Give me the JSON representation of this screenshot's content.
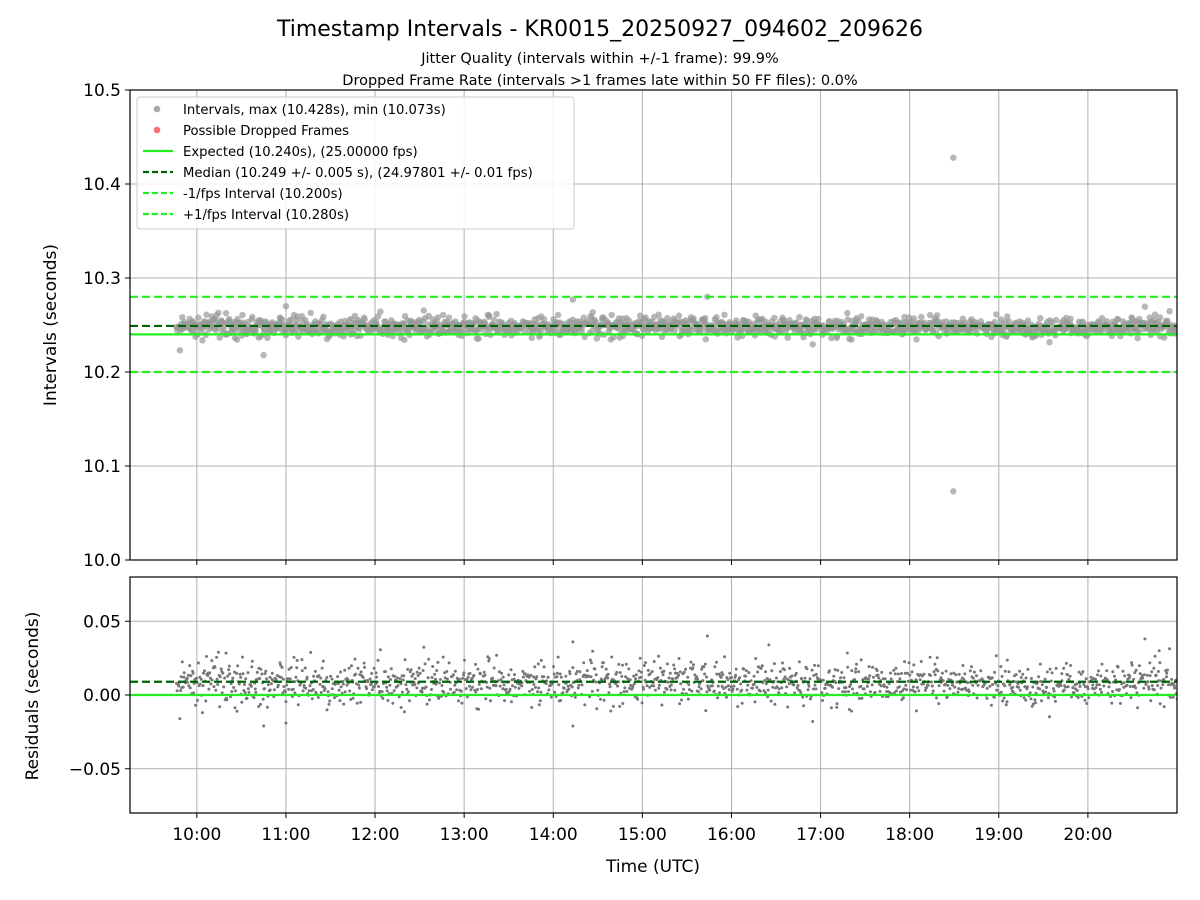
{
  "figure": {
    "title": "Timestamp Intervals - KR0015_20250927_094602_209626",
    "subtitle_line1": "Jitter Quality (intervals within +/-1 frame): 99.9%",
    "subtitle_line2": "Dropped Frame Rate (intervals >1 frames late within 50 FF files): 0.0%"
  },
  "colors": {
    "points": "#808080",
    "dropped": "#ff5555",
    "expected": "#22ee22",
    "median": "#006400",
    "bounds": "#22ee22",
    "grid": "#b0b0b0"
  },
  "chart_data": [
    {
      "type": "scatter",
      "ylabel": "Intervals (seconds)",
      "xlim": [
        9.25,
        21.0
      ],
      "ylim": [
        10.0,
        10.5
      ],
      "yticks": [
        10.0,
        10.1,
        10.2,
        10.3,
        10.4,
        10.5
      ],
      "ytick_labels": [
        "10.0",
        "10.1",
        "10.2",
        "10.3",
        "10.4",
        "10.5"
      ],
      "xticks": [
        10,
        11,
        12,
        13,
        14,
        15,
        16,
        17,
        18,
        19,
        20
      ],
      "grid": true,
      "legend_position": "top-left",
      "legend": [
        {
          "label": "Intervals, max (10.428s), min (10.073s)",
          "kind": "marker",
          "color": "#999999"
        },
        {
          "label": "Possible Dropped Frames",
          "kind": "marker",
          "color": "#ff5555"
        },
        {
          "label": "Expected (10.240s), (25.00000 fps)",
          "kind": "solid",
          "color": "#22ee22"
        },
        {
          "label": "Median (10.249 +/- 0.005 s), (24.97801 +/- 0.01 fps)",
          "kind": "dashed",
          "color": "#006400"
        },
        {
          "label": "-1/fps Interval (10.200s)",
          "kind": "dashed",
          "color": "#22ee22"
        },
        {
          "label": "+1/fps Interval (10.280s)",
          "kind": "dashed",
          "color": "#22ee22"
        }
      ],
      "series": {
        "time_range_hours": [
          9.77,
          21.0
        ],
        "typical_value": 10.248,
        "typical_spread": 0.005,
        "outliers": [
          {
            "x": 18.49,
            "y": 10.428
          },
          {
            "x": 18.49,
            "y": 10.073
          },
          {
            "x": 15.73,
            "y": 10.28
          },
          {
            "x": 14.22,
            "y": 10.277
          },
          {
            "x": 11.0,
            "y": 10.27
          },
          {
            "x": 9.81,
            "y": 10.223
          },
          {
            "x": 10.75,
            "y": 10.218
          }
        ]
      },
      "reference_lines": {
        "expected": 10.24,
        "median": 10.249,
        "lower": 10.2,
        "upper": 10.28
      }
    },
    {
      "type": "scatter",
      "xlabel": "Time (UTC)",
      "ylabel": "Residuals (seconds)",
      "xlim": [
        9.25,
        21.0
      ],
      "ylim": [
        -0.08,
        0.08
      ],
      "yticks": [
        -0.05,
        0.0,
        0.05
      ],
      "ytick_labels": [
        "−0.05",
        "0.00",
        "0.05"
      ],
      "xticks": [
        10,
        11,
        12,
        13,
        14,
        15,
        16,
        17,
        18,
        19,
        20
      ],
      "xtick_labels": [
        "10:00",
        "11:00",
        "12:00",
        "13:00",
        "14:00",
        "15:00",
        "16:00",
        "17:00",
        "18:00",
        "19:00",
        "20:00"
      ],
      "grid": true,
      "series": {
        "time_range_hours": [
          9.77,
          21.0
        ],
        "typical_value": 0.008,
        "typical_spread": 0.007,
        "outliers": [
          {
            "x": 15.73,
            "y": 0.04
          },
          {
            "x": 14.22,
            "y": 0.036
          },
          {
            "x": 16.42,
            "y": 0.034
          },
          {
            "x": 14.22,
            "y": -0.021
          },
          {
            "x": 10.75,
            "y": -0.021
          },
          {
            "x": 11.0,
            "y": -0.019
          },
          {
            "x": 9.81,
            "y": -0.016
          },
          {
            "x": 20.8,
            "y": 0.03
          }
        ]
      },
      "reference_lines": {
        "expected": 0.0,
        "median": 0.009
      }
    }
  ]
}
